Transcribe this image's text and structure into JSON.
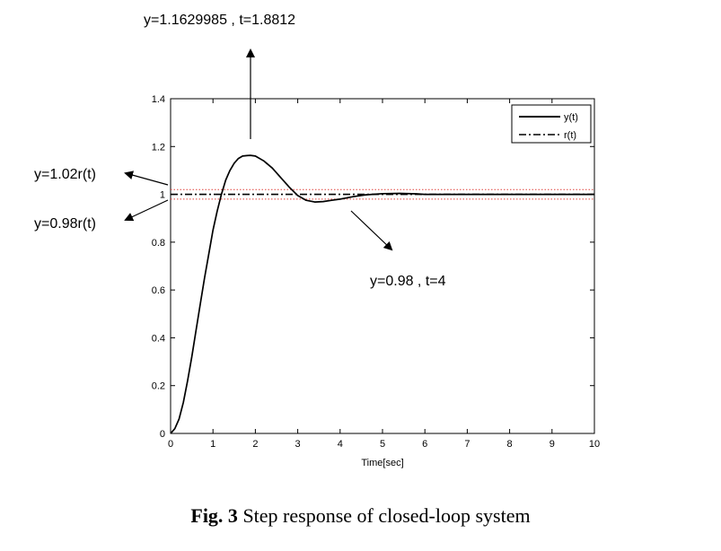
{
  "chart_data": {
    "type": "line",
    "xlabel": "Time[sec]",
    "ylabel": "",
    "xlim": [
      0,
      10
    ],
    "ylim": [
      0,
      1.4
    ],
    "xticks": [
      "0",
      "1",
      "2",
      "3",
      "4",
      "5",
      "6",
      "7",
      "8",
      "9",
      "10"
    ],
    "yticks": [
      "0",
      "0.2",
      "0.4",
      "0.6",
      "0.8",
      "1",
      "1.2",
      "1.4"
    ],
    "grid": false,
    "legend_position": "top-right",
    "series": [
      {
        "name": "y(t)",
        "style": "solid",
        "color": "#000000",
        "x": [
          0,
          0.1,
          0.2,
          0.3,
          0.4,
          0.5,
          0.6,
          0.7,
          0.8,
          0.9,
          1.0,
          1.1,
          1.2,
          1.3,
          1.4,
          1.5,
          1.6,
          1.7,
          1.8,
          1.8812,
          2.0,
          2.2,
          2.4,
          2.6,
          2.8,
          3.0,
          3.2,
          3.4,
          3.6,
          3.8,
          4.0,
          4.3,
          4.6,
          5.0,
          5.4,
          5.8,
          6.0,
          7.0,
          8.0,
          9.0,
          10.0
        ],
        "y": [
          0,
          0.02,
          0.06,
          0.13,
          0.22,
          0.32,
          0.43,
          0.54,
          0.65,
          0.75,
          0.85,
          0.93,
          1.0,
          1.06,
          1.1,
          1.13,
          1.15,
          1.16,
          1.162,
          1.163,
          1.16,
          1.14,
          1.11,
          1.07,
          1.03,
          0.995,
          0.975,
          0.968,
          0.97,
          0.975,
          0.98,
          0.99,
          0.998,
          1.003,
          1.004,
          1.002,
          1.0,
          1.0,
          1.0,
          1.0,
          1.0
        ]
      },
      {
        "name": "r(t)",
        "style": "dash-dot",
        "color": "#000000",
        "x": [
          0,
          10
        ],
        "y": [
          1,
          1
        ]
      }
    ],
    "reference_lines": [
      {
        "y": 1.02,
        "color": "#e0403a",
        "style": "dotted"
      },
      {
        "y": 0.98,
        "color": "#e0403a",
        "style": "dotted"
      }
    ],
    "annotations": [
      {
        "text": "y=1.1629985  , t=1.8812"
      },
      {
        "text": "y=1.02r(t)"
      },
      {
        "text": "y=0.98r(t)"
      },
      {
        "text": "y=0.98  , t=4"
      }
    ]
  },
  "caption": {
    "label": "Fig. 3",
    "text": " Step response of closed-loop system"
  }
}
